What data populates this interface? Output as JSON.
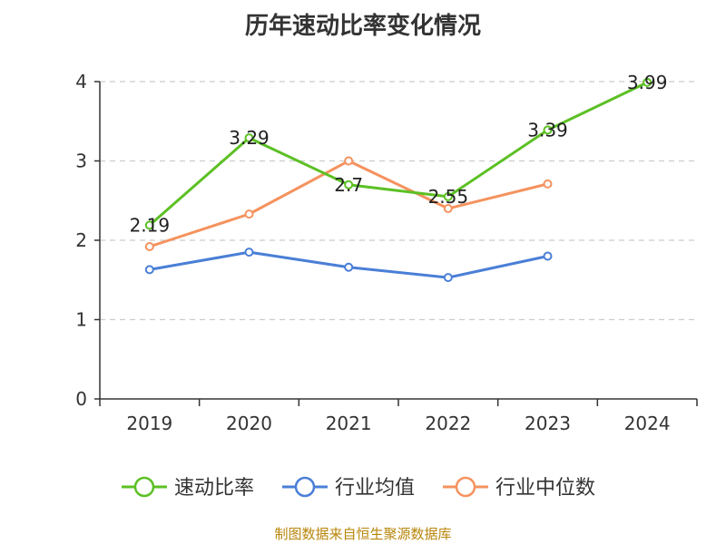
{
  "chart_data": {
    "type": "line",
    "title": "历年速动比率变化情况",
    "categories": [
      "2019",
      "2020",
      "2021",
      "2022",
      "2023",
      "2024"
    ],
    "ylim": [
      0,
      4
    ],
    "yticks": [
      "0",
      "1",
      "2",
      "3",
      "4"
    ],
    "grid": true,
    "legend_position": "bottom",
    "series": [
      {
        "name": "速动比率",
        "color": "#5cc024",
        "values": [
          2.19,
          3.29,
          2.7,
          2.55,
          3.39,
          3.99
        ],
        "labels": [
          "2.19",
          "3.29",
          "2.7",
          "2.55",
          "3.39",
          "3.99"
        ]
      },
      {
        "name": "行业均值",
        "color": "#4a7fd6",
        "values": [
          1.63,
          1.85,
          1.66,
          1.53,
          1.8,
          null
        ]
      },
      {
        "name": "行业中位数",
        "color": "#f5925e",
        "values": [
          1.92,
          2.33,
          3.0,
          2.4,
          2.71,
          null
        ]
      }
    ]
  },
  "source_text": "制图数据来自恒生聚源数据库"
}
